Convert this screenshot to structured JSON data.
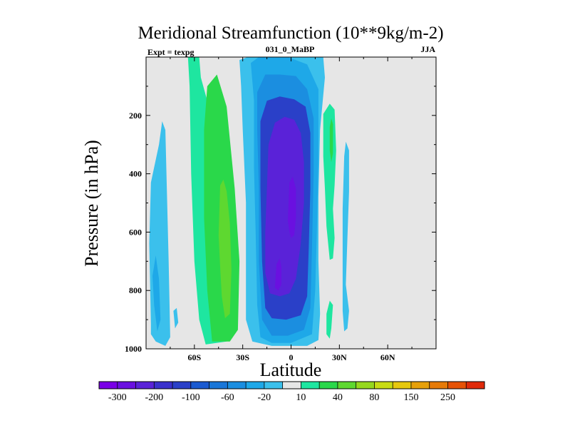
{
  "chart_data": {
    "type": "heatmap",
    "title": "Meridional Streamfunction (10**9kg/m-2)",
    "left_label": "Expt = texpg",
    "center_label": "031_0_MaBP",
    "right_label": "JJA",
    "xlabel": "Latitude",
    "ylabel": "Pressure (in hPa)",
    "xlim": [
      -90,
      90
    ],
    "ylim": [
      1000,
      0
    ],
    "x_ticks": [
      {
        "value": -60,
        "label": "60S"
      },
      {
        "value": -30,
        "label": "30S"
      },
      {
        "value": 0,
        "label": "0"
      },
      {
        "value": 30,
        "label": "30N"
      },
      {
        "value": 60,
        "label": "60N"
      }
    ],
    "y_ticks": [
      {
        "value": 200,
        "label": "200"
      },
      {
        "value": 400,
        "label": "400"
      },
      {
        "value": 600,
        "label": "600"
      },
      {
        "value": 800,
        "label": "800"
      },
      {
        "value": 1000,
        "label": "1000"
      }
    ],
    "colorbar": {
      "colors": [
        "#7a00e6",
        "#6a10e0",
        "#5a22d8",
        "#3a30cc",
        "#2a40c8",
        "#1a5ad0",
        "#1976d8",
        "#1b8ee0",
        "#1ea8e8",
        "#3bc0ec",
        "#e6e6e6",
        "#1ee6a0",
        "#2ad84a",
        "#5ed830",
        "#96d81e",
        "#c8dc14",
        "#e6c80e",
        "#e6a00a",
        "#e67a08",
        "#e65206",
        "#e02a0a"
      ],
      "labels": [
        {
          "label": "-300",
          "edge": 1
        },
        {
          "label": "-200",
          "edge": 3
        },
        {
          "label": "-100",
          "edge": 5
        },
        {
          "label": "-60",
          "edge": 7
        },
        {
          "label": "-20",
          "edge": 9
        },
        {
          "label": "10",
          "edge": 11
        },
        {
          "label": "40",
          "edge": 13
        },
        {
          "label": "80",
          "edge": 15
        },
        {
          "label": "150",
          "edge": 17
        },
        {
          "label": "250",
          "edge": 19
        }
      ]
    },
    "regions": [
      {
        "name": "cell-sh-outer-light",
        "level": "-20",
        "color": "#3bc0ec",
        "points": [
          [
            -87,
            915
          ],
          [
            -88,
            640
          ],
          [
            -87,
            430
          ],
          [
            -82,
            300
          ],
          [
            -80,
            220
          ],
          [
            -78,
            250
          ],
          [
            -76,
            700
          ],
          [
            -75,
            960
          ],
          [
            -78,
            990
          ],
          [
            -84,
            975
          ],
          [
            -87,
            950
          ]
        ]
      },
      {
        "name": "cell-sh-outer-mid",
        "level": "-60",
        "color": "#1ea8e8",
        "points": [
          [
            -85,
            850
          ],
          [
            -86,
            750
          ],
          [
            -84,
            680
          ],
          [
            -82,
            760
          ],
          [
            -81,
            900
          ],
          [
            -83,
            940
          ]
        ]
      },
      {
        "name": "cell-sh-outer-low",
        "level": "-20",
        "color": "#3bc0ec",
        "points": [
          [
            -72,
            930
          ],
          [
            -73,
            870
          ],
          [
            -71,
            860
          ],
          [
            -70,
            910
          ]
        ]
      },
      {
        "name": "cell-ferrel-band",
        "level": "10",
        "color": "#1ee6a0",
        "points": [
          [
            -64,
            0
          ],
          [
            -57,
            0
          ],
          [
            -56,
            70
          ],
          [
            -49,
            210
          ],
          [
            -47,
            420
          ],
          [
            -45,
            700
          ],
          [
            -44,
            890
          ],
          [
            -40,
            975
          ],
          [
            -53,
            985
          ],
          [
            -57,
            900
          ],
          [
            -60,
            700
          ],
          [
            -62,
            400
          ],
          [
            -63,
            100
          ]
        ]
      },
      {
        "name": "cell-ferrel-core",
        "level": "40",
        "color": "#2ad84a",
        "points": [
          [
            -54,
            250
          ],
          [
            -52,
            100
          ],
          [
            -46,
            60
          ],
          [
            -40,
            170
          ],
          [
            -35,
            450
          ],
          [
            -32,
            700
          ],
          [
            -33,
            935
          ],
          [
            -38,
            975
          ],
          [
            -49,
            975
          ],
          [
            -52,
            800
          ],
          [
            -54,
            550
          ]
        ]
      },
      {
        "name": "cell-ferrel-max",
        "level": "80",
        "color": "#5ed830",
        "points": [
          [
            -45,
            610
          ],
          [
            -44,
            440
          ],
          [
            -42,
            420
          ],
          [
            -40,
            460
          ],
          [
            -38,
            570
          ],
          [
            -37,
            730
          ],
          [
            -38,
            880
          ],
          [
            -41,
            895
          ],
          [
            -43,
            820
          ],
          [
            -44,
            720
          ]
        ]
      },
      {
        "name": "cell-hadley-outer",
        "level": "-20",
        "color": "#3bc0ec",
        "points": [
          [
            -32,
            10
          ],
          [
            -27,
            0
          ],
          [
            20,
            0
          ],
          [
            21,
            70
          ],
          [
            18,
            250
          ],
          [
            17,
            480
          ],
          [
            17,
            700
          ],
          [
            18,
            880
          ],
          [
            17,
            970
          ],
          [
            10,
            990
          ],
          [
            -12,
            990
          ],
          [
            -24,
            975
          ],
          [
            -28,
            900
          ],
          [
            -28,
            750
          ],
          [
            -28,
            500
          ],
          [
            -30,
            250
          ],
          [
            -31,
            100
          ]
        ]
      },
      {
        "name": "cell-hadley-mid",
        "level": "-60",
        "color": "#1ea8e8",
        "points": [
          [
            -25,
            20
          ],
          [
            -20,
            0
          ],
          [
            -2,
            0
          ],
          [
            10,
            25
          ],
          [
            17,
            110
          ],
          [
            17,
            350
          ],
          [
            16,
            600
          ],
          [
            15,
            800
          ],
          [
            13,
            950
          ],
          [
            0,
            980
          ],
          [
            -12,
            980
          ],
          [
            -19,
            960
          ],
          [
            -21,
            850
          ],
          [
            -22,
            600
          ],
          [
            -23,
            380
          ],
          [
            -23,
            150
          ]
        ]
      },
      {
        "name": "cell-hadley-inner",
        "level": "-100",
        "color": "#1b8ee0",
        "points": [
          [
            -21,
            120
          ],
          [
            -16,
            60
          ],
          [
            -7,
            60
          ],
          [
            3,
            65
          ],
          [
            10,
            110
          ],
          [
            14,
            210
          ],
          [
            14,
            400
          ],
          [
            13,
            650
          ],
          [
            12,
            860
          ],
          [
            8,
            935
          ],
          [
            -2,
            955
          ],
          [
            -12,
            955
          ],
          [
            -18,
            900
          ],
          [
            -20,
            700
          ],
          [
            -20,
            450
          ],
          [
            -21,
            250
          ]
        ]
      },
      {
        "name": "cell-hadley-strong",
        "level": "-200",
        "color": "#2a40c8",
        "points": [
          [
            -19,
            220
          ],
          [
            -15,
            150
          ],
          [
            -7,
            135
          ],
          [
            2,
            145
          ],
          [
            9,
            170
          ],
          [
            12,
            260
          ],
          [
            12,
            450
          ],
          [
            11,
            650
          ],
          [
            10,
            820
          ],
          [
            6,
            885
          ],
          [
            -3,
            900
          ],
          [
            -12,
            895
          ],
          [
            -16,
            860
          ],
          [
            -18,
            700
          ],
          [
            -19,
            450
          ]
        ]
      },
      {
        "name": "cell-hadley-core",
        "level": "-300",
        "color": "#5a22d8",
        "points": [
          [
            -14,
            300
          ],
          [
            -10,
            225
          ],
          [
            -4,
            205
          ],
          [
            2,
            215
          ],
          [
            6,
            260
          ],
          [
            8,
            360
          ],
          [
            8,
            500
          ],
          [
            6,
            640
          ],
          [
            3,
            760
          ],
          [
            -1,
            810
          ],
          [
            -7,
            820
          ],
          [
            -13,
            810
          ],
          [
            -16,
            740
          ],
          [
            -16,
            600
          ],
          [
            -15,
            450
          ]
        ]
      },
      {
        "name": "cell-hadley-peak-a",
        "level": "-300",
        "color": "#6a10e0",
        "points": [
          [
            -2,
            560
          ],
          [
            -1,
            430
          ],
          [
            1,
            410
          ],
          [
            3,
            450
          ],
          [
            3,
            550
          ],
          [
            2,
            610
          ],
          [
            0,
            620
          ],
          [
            -1,
            600
          ]
        ]
      },
      {
        "name": "cell-hadley-peak-b",
        "level": "-300",
        "color": "#6a10e0",
        "points": [
          [
            -10,
            790
          ],
          [
            -9,
            710
          ],
          [
            -7,
            690
          ],
          [
            -6,
            720
          ],
          [
            -6,
            780
          ],
          [
            -8,
            800
          ]
        ]
      },
      {
        "name": "cell-nh-upper-green",
        "level": "10",
        "color": "#1ee6a0",
        "points": [
          [
            20,
            195
          ],
          [
            24,
            160
          ],
          [
            27,
            180
          ],
          [
            28,
            320
          ],
          [
            27,
            440
          ],
          [
            26,
            520
          ],
          [
            27,
            620
          ],
          [
            26,
            690
          ],
          [
            24,
            695
          ],
          [
            22,
            580
          ],
          [
            21,
            450
          ],
          [
            20,
            340
          ]
        ]
      },
      {
        "name": "cell-nh-upper-green-inner",
        "level": "40",
        "color": "#2ad84a",
        "points": [
          [
            24,
            240
          ],
          [
            25,
            210
          ],
          [
            26,
            230
          ],
          [
            26,
            330
          ],
          [
            25,
            360
          ],
          [
            24,
            320
          ]
        ]
      },
      {
        "name": "cell-nh-lower-green",
        "level": "10",
        "color": "#1ee6a0",
        "points": [
          [
            22,
            880
          ],
          [
            24,
            835
          ],
          [
            26,
            850
          ],
          [
            25,
            930
          ],
          [
            24,
            965
          ],
          [
            22,
            950
          ]
        ]
      },
      {
        "name": "cell-nh-blue-strip",
        "level": "-20",
        "color": "#3bc0ec",
        "points": [
          [
            33,
            340
          ],
          [
            34,
            290
          ],
          [
            36,
            320
          ],
          [
            36,
            460
          ],
          [
            35,
            620
          ],
          [
            34,
            780
          ],
          [
            36,
            870
          ],
          [
            35,
            930
          ],
          [
            33,
            940
          ],
          [
            32,
            870
          ],
          [
            32,
            700
          ],
          [
            32,
            520
          ]
        ]
      }
    ]
  }
}
